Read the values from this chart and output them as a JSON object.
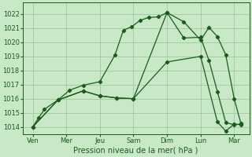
{
  "background_color": "#c8e8c8",
  "grid_color": "#a0c8a0",
  "line_color": "#1a5c1a",
  "x_labels": [
    "Ven",
    "Mer",
    "Jeu",
    "Sam",
    "Dim",
    "Lun",
    "Mar"
  ],
  "x_ticks": [
    0,
    1,
    2,
    3,
    4,
    5,
    6
  ],
  "xlabel": "Pression niveau de la mer( hPa )",
  "ylim": [
    1013.5,
    1022.8
  ],
  "yticks": [
    1014,
    1015,
    1016,
    1017,
    1018,
    1019,
    1020,
    1021,
    1022
  ],
  "series1_x": [
    0,
    0.18,
    0.35,
    0.75,
    1.1,
    1.5,
    2.0,
    2.45,
    2.7,
    2.95,
    3.2,
    3.45,
    3.75,
    4.0,
    4.5,
    5.0,
    5.25,
    5.5,
    5.75,
    6.0,
    6.2
  ],
  "series1_y": [
    1014.0,
    1014.65,
    1015.25,
    1015.9,
    1016.6,
    1016.95,
    1017.2,
    1019.1,
    1020.85,
    1021.1,
    1021.55,
    1021.75,
    1021.8,
    1022.1,
    1021.45,
    1020.15,
    1021.05,
    1020.4,
    1019.1,
    1016.0,
    1014.25
  ],
  "series2_x": [
    0,
    0.75,
    1.5,
    2.0,
    2.5,
    3.0,
    4.0,
    4.5,
    5.0,
    5.25,
    5.5,
    5.75,
    6.0,
    6.2
  ],
  "series2_y": [
    1014.0,
    1015.9,
    1016.55,
    1016.2,
    1016.05,
    1016.0,
    1022.1,
    1020.3,
    1020.35,
    1018.7,
    1016.5,
    1014.3,
    1014.15,
    1014.2
  ],
  "series3_x": [
    0,
    0.75,
    1.5,
    2.0,
    2.5,
    3.0,
    4.0,
    5.0,
    5.5,
    5.75,
    6.0,
    6.2
  ],
  "series3_y": [
    1014.0,
    1015.9,
    1016.55,
    1016.2,
    1016.05,
    1016.0,
    1018.6,
    1019.0,
    1014.35,
    1013.7,
    1014.2,
    1014.15
  ]
}
